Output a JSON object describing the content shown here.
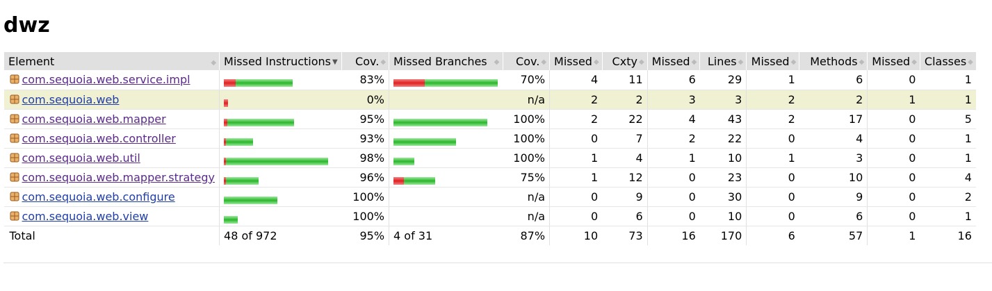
{
  "title": "dwz",
  "headers": {
    "element": "Element",
    "missed_instructions": "Missed Instructions",
    "cov1": "Cov.",
    "missed_branches": "Missed Branches",
    "cov2": "Cov.",
    "missed_cxty": "Missed",
    "cxty": "Cxty",
    "missed_lines": "Missed",
    "lines": "Lines",
    "missed_methods": "Missed",
    "methods": "Methods",
    "missed_classes": "Missed",
    "classes": "Classes"
  },
  "rows": [
    {
      "name": "com.sequoia.web.service.impl",
      "instr_missed_frac": 0.17,
      "instr_total_frac": 0.66,
      "instr_cov": "83%",
      "br_missed_frac": 0.3,
      "br_total_frac": 1.0,
      "br_cov": "70%",
      "cx_missed": "4",
      "cx": "11",
      "ln_missed": "6",
      "ln": "29",
      "m_missed": "1",
      "m": "6",
      "c_missed": "0",
      "c": "1"
    },
    {
      "name": "com.sequoia.web",
      "instr_missed_frac": 1.0,
      "instr_total_frac": 0.04,
      "instr_cov": "0%",
      "br_missed_frac": 0,
      "br_total_frac": 0,
      "br_cov": "n/a",
      "cx_missed": "2",
      "cx": "2",
      "ln_missed": "3",
      "ln": "3",
      "m_missed": "2",
      "m": "2",
      "c_missed": "1",
      "c": "1"
    },
    {
      "name": "com.sequoia.web.mapper",
      "instr_missed_frac": 0.05,
      "instr_total_frac": 0.67,
      "instr_cov": "95%",
      "br_missed_frac": 0,
      "br_total_frac": 0.9,
      "br_cov": "100%",
      "cx_missed": "2",
      "cx": "22",
      "ln_missed": "4",
      "ln": "43",
      "m_missed": "2",
      "m": "17",
      "c_missed": "0",
      "c": "5"
    },
    {
      "name": "com.sequoia.web.controller",
      "instr_missed_frac": 0.07,
      "instr_total_frac": 0.28,
      "instr_cov": "93%",
      "br_missed_frac": 0,
      "br_total_frac": 0.6,
      "br_cov": "100%",
      "cx_missed": "0",
      "cx": "7",
      "ln_missed": "2",
      "ln": "22",
      "m_missed": "0",
      "m": "4",
      "c_missed": "0",
      "c": "1"
    },
    {
      "name": "com.sequoia.web.util",
      "instr_missed_frac": 0.02,
      "instr_total_frac": 1.0,
      "instr_cov": "98%",
      "br_missed_frac": 0,
      "br_total_frac": 0.2,
      "br_cov": "100%",
      "cx_missed": "1",
      "cx": "4",
      "ln_missed": "1",
      "ln": "10",
      "m_missed": "1",
      "m": "3",
      "c_missed": "0",
      "c": "1"
    },
    {
      "name": "com.sequoia.web.mapper.strategy",
      "instr_missed_frac": 0.04,
      "instr_total_frac": 0.33,
      "instr_cov": "96%",
      "br_missed_frac": 0.25,
      "br_total_frac": 0.4,
      "br_cov": "75%",
      "cx_missed": "1",
      "cx": "12",
      "ln_missed": "0",
      "ln": "23",
      "m_missed": "0",
      "m": "10",
      "c_missed": "0",
      "c": "4"
    },
    {
      "name": "com.sequoia.web.configure",
      "instr_missed_frac": 0,
      "instr_total_frac": 0.51,
      "instr_cov": "100%",
      "br_missed_frac": 0,
      "br_total_frac": 0,
      "br_cov": "n/a",
      "cx_missed": "0",
      "cx": "9",
      "ln_missed": "0",
      "ln": "30",
      "m_missed": "0",
      "m": "9",
      "c_missed": "0",
      "c": "2"
    },
    {
      "name": "com.sequoia.web.view",
      "instr_missed_frac": 0,
      "instr_total_frac": 0.13,
      "instr_cov": "100%",
      "br_missed_frac": 0,
      "br_total_frac": 0,
      "br_cov": "n/a",
      "cx_missed": "0",
      "cx": "6",
      "ln_missed": "0",
      "ln": "10",
      "m_missed": "0",
      "m": "6",
      "c_missed": "0",
      "c": "1"
    }
  ],
  "total": {
    "label": "Total",
    "instr": "48 of 972",
    "instr_cov": "95%",
    "br": "4 of 31",
    "br_cov": "87%",
    "cx_missed": "10",
    "cx": "73",
    "ln_missed": "16",
    "ln": "170",
    "m_missed": "6",
    "m": "57",
    "c_missed": "1",
    "c": "16"
  },
  "colors": {
    "missed": "#e02020",
    "covered": "#2bb52b",
    "highlight": "#f0f0d2",
    "header": "#e0e0e0"
  }
}
